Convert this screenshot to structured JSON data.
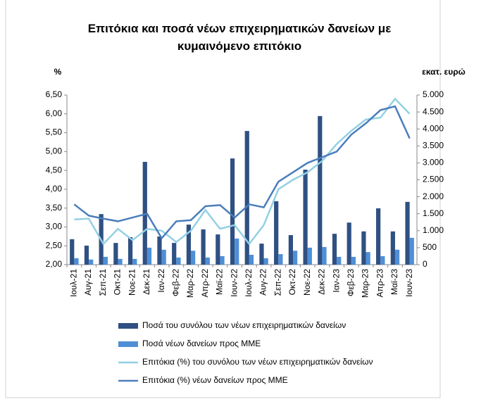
{
  "chart_data": {
    "type": "bar",
    "title": "Επιτόκια και ποσά νέων επιχειρηματικών δανείων με κυμαινόμενο επιτόκιο",
    "y_label": "%",
    "y2_label": "εκατ. ευρώ",
    "categories": [
      "Ιουλ-21",
      "Αυγ-21",
      "Σεπ-21",
      "Οκτ-21",
      "Νοε-21",
      "Δεκ-21",
      "Ιαν-22",
      "Φεβ-22",
      "Μαρ-22",
      "Απρ-22",
      "Μαϊ-22",
      "Ιουν-22",
      "Ιουλ-22",
      "Αυγ-22",
      "Σεπ-22",
      "Οκτ-22",
      "Νοε-22",
      "Δεκ-22",
      "Ιαν-23",
      "Φεβ-23",
      "Μαρ-23",
      "Απρ-23",
      "Μαϊ-23",
      "Ιουν-23"
    ],
    "series": [
      {
        "name": "Ποσά του συνόλου των νέων επιχειρηματικών δανείων",
        "type": "bar",
        "axis": "y2",
        "color": "#2f5082",
        "values": [
          750,
          560,
          1490,
          640,
          810,
          3030,
          830,
          640,
          1180,
          1040,
          890,
          3130,
          3940,
          620,
          1870,
          870,
          2800,
          4380,
          910,
          1240,
          980,
          1660,
          980,
          1850
        ]
      },
      {
        "name": "Ποσά νέων δανείων προς ΜΜΕ",
        "type": "bar",
        "axis": "y2",
        "color": "#4f8fd6",
        "values": [
          190,
          150,
          230,
          170,
          170,
          500,
          440,
          210,
          410,
          210,
          250,
          770,
          290,
          190,
          310,
          410,
          500,
          520,
          230,
          230,
          370,
          250,
          440,
          790
        ]
      },
      {
        "name": "Επιτόκια (%) του συνόλου των νέων επιχειρηματικών δανείων",
        "type": "line",
        "color": "#93d0e4",
        "values": [
          3.2,
          3.22,
          2.55,
          2.95,
          2.65,
          2.95,
          2.9,
          2.6,
          2.9,
          3.45,
          2.95,
          3.05,
          2.55,
          3.05,
          4.0,
          4.25,
          4.45,
          4.75,
          5.2,
          5.55,
          5.85,
          5.9,
          6.4,
          6.0
        ]
      },
      {
        "name": "Επιτόκια (%) νέων δανείων προς ΜΜΕ",
        "type": "line",
        "color": "#4a7ebb",
        "values": [
          3.6,
          3.3,
          3.22,
          3.15,
          3.25,
          3.35,
          2.7,
          3.15,
          3.18,
          3.55,
          3.58,
          3.25,
          3.6,
          3.52,
          4.2,
          4.45,
          4.7,
          4.85,
          5.0,
          5.45,
          5.75,
          6.1,
          6.2,
          5.35
        ]
      }
    ],
    "ylim": [
      2,
      6.5
    ],
    "yticks": [
      {
        "value": 2,
        "label": "2,00"
      },
      {
        "value": 2.5,
        "label": "2,50"
      },
      {
        "value": 3,
        "label": "3,00"
      },
      {
        "value": 3.5,
        "label": "3,50"
      },
      {
        "value": 4,
        "label": "4,00"
      },
      {
        "value": 4.5,
        "label": "4,50"
      },
      {
        "value": 5,
        "label": "5,00"
      },
      {
        "value": 5.5,
        "label": "5,50"
      },
      {
        "value": 6,
        "label": "6,00"
      },
      {
        "value": 6.5,
        "label": "6,50"
      }
    ],
    "y2lim": [
      0,
      5000
    ],
    "y2ticks": [
      0,
      500,
      {
        "value": 1000,
        "label": "1.000"
      },
      {
        "value": 1500,
        "label": "1.500"
      },
      {
        "value": 2000,
        "label": "2.000"
      },
      {
        "value": 2500,
        "label": "2.500"
      },
      {
        "value": 3000,
        "label": "3.000"
      },
      {
        "value": 3500,
        "label": "3.500"
      },
      {
        "value": 4000,
        "label": "4.000"
      },
      {
        "value": 4500,
        "label": "4.500"
      },
      {
        "value": 5000,
        "label": "5.000"
      }
    ],
    "grid": false
  }
}
